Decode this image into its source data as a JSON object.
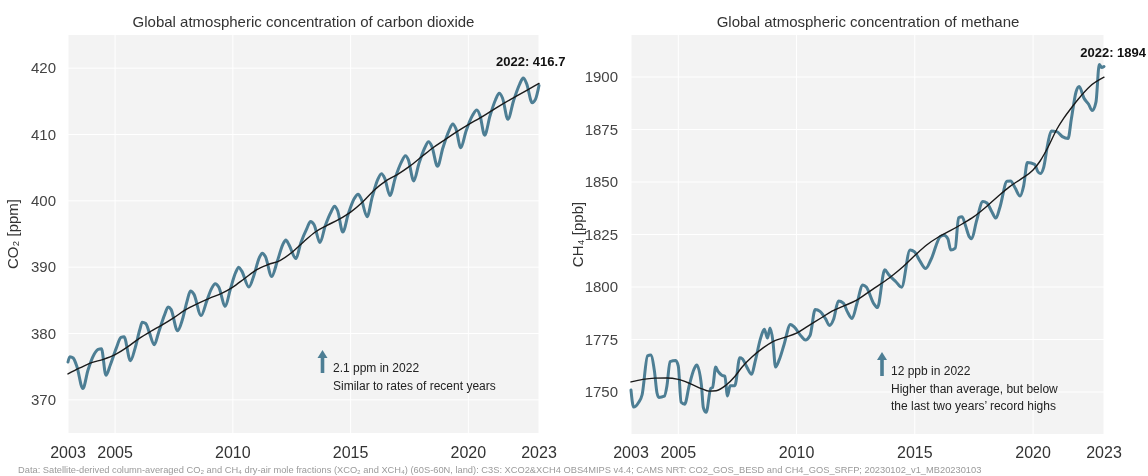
{
  "chart_data": [
    {
      "type": "line",
      "title": "Global atmospheric concentration of carbon dioxide",
      "ylabel": "CO₂ [ppm]",
      "xlim": [
        2003,
        2023
      ],
      "xticks": [
        2003,
        2005,
        2010,
        2015,
        2020,
        2023
      ],
      "ylim": [
        365,
        425
      ],
      "yticks": [
        370,
        380,
        390,
        400,
        410,
        420
      ],
      "grid": true,
      "annotations": [
        "2022: 416.7",
        "2.1 ppm in 2022",
        "Similar to rates of recent years",
        "Data: Satellite-derived column-averaged CO₂ and CH₄ dry-air mole fractions (XCO₂ and XCH₄) (60S-60N, land): C3S: XCO2&XCH4 OBS4MIPS v4.4; CAMS NRT: CO2_GOS_BESD and CH4_GOS_SRFP; 20230102_v1_MB20230103"
      ],
      "series": [
        {
          "color": "#4d7e94",
          "x": [
            2003.0,
            2003.08,
            2003.22,
            2003.38,
            2003.63,
            2003.85,
            2004.1,
            2004.28,
            2004.42,
            2004.61,
            2004.8,
            2005.05,
            2005.25,
            2005.38,
            2005.65,
            2005.85,
            2006.05,
            2006.15,
            2006.3,
            2006.45,
            2006.66,
            2006.85,
            2007.1,
            2007.25,
            2007.38,
            2007.65,
            2007.85,
            2008.05,
            2008.2,
            2008.35,
            2008.65,
            2008.9,
            2009.1,
            2009.25,
            2009.4,
            2009.68,
            2009.88,
            2010.12,
            2010.25,
            2010.38,
            2010.68,
            2010.88,
            2011.12,
            2011.25,
            2011.38,
            2011.65,
            2011.88,
            2012.12,
            2012.25,
            2012.38,
            2012.68,
            2012.88,
            2013.15,
            2013.3,
            2013.45,
            2013.7,
            2013.92,
            2014.18,
            2014.32,
            2014.45,
            2014.67,
            2014.9,
            2015.15,
            2015.32,
            2015.45,
            2015.7,
            2015.92,
            2016.15,
            2016.31,
            2016.45,
            2016.67,
            2016.9,
            2017.15,
            2017.33,
            2017.45,
            2017.68,
            2017.9,
            2018.15,
            2018.31,
            2018.45,
            2018.69,
            2018.92,
            2019.18,
            2019.34,
            2019.47,
            2019.68,
            2019.9,
            2020.18,
            2020.36,
            2020.5,
            2020.69,
            2020.92,
            2021.15,
            2021.31,
            2021.45,
            2021.68,
            2021.92,
            2022.18,
            2022.33,
            2022.47,
            2022.71,
            2022.85,
            2023.0
          ],
          "values": [
            375.7,
            376.5,
            376.3,
            375.0,
            371.7,
            374.5,
            376.8,
            377.6,
            377.7,
            373.7,
            375.3,
            377.8,
            379.4,
            379.5,
            375.9,
            377.8,
            380.6,
            381.7,
            381.5,
            380.2,
            378.3,
            380.2,
            382.8,
            384.0,
            383.6,
            380.4,
            382.0,
            384.8,
            386.4,
            385.9,
            382.7,
            385.0,
            386.8,
            387.5,
            387.0,
            384.1,
            386.5,
            389.2,
            390.0,
            389.4,
            387.0,
            388.6,
            391.4,
            392.1,
            391.6,
            388.6,
            390.8,
            393.4,
            394.1,
            393.4,
            391.3,
            393.6,
            395.9,
            396.9,
            396.4,
            393.7,
            396.2,
            398.4,
            399.2,
            398.5,
            395.3,
            398.0,
            400.3,
            401.0,
            400.3,
            397.6,
            400.6,
            403.2,
            404.1,
            403.4,
            400.8,
            403.5,
            405.8,
            406.8,
            406.2,
            403.0,
            405.6,
            408.0,
            408.9,
            408.2,
            405.2,
            408.0,
            410.6,
            411.6,
            410.9,
            408.0,
            410.5,
            412.9,
            413.7,
            412.8,
            409.9,
            412.8,
            415.2,
            416.2,
            415.5,
            412.3,
            415.1,
            417.6,
            418.5,
            417.7,
            414.8,
            415.3,
            417.4
          ]
        },
        {
          "color": "#1a1a1a",
          "x": [
            2003.0,
            2003.5,
            2004.0,
            2004.5,
            2005.0,
            2005.5,
            2006.0,
            2006.5,
            2007.0,
            2007.5,
            2008.0,
            2008.5,
            2009.0,
            2009.5,
            2010.0,
            2010.5,
            2011.0,
            2011.5,
            2012.0,
            2012.5,
            2013.0,
            2013.5,
            2014.0,
            2014.5,
            2015.0,
            2015.5,
            2016.0,
            2016.5,
            2017.0,
            2017.5,
            2018.0,
            2018.5,
            2019.0,
            2019.5,
            2020.0,
            2020.5,
            2021.0,
            2021.5,
            2022.0,
            2022.5,
            2023.0
          ],
          "values": [
            373.9,
            374.8,
            375.6,
            376.1,
            376.8,
            377.9,
            379.2,
            380.3,
            381.3,
            382.4,
            383.6,
            384.5,
            385.3,
            386.0,
            387.0,
            388.3,
            389.6,
            390.4,
            391.0,
            392.2,
            393.8,
            395.3,
            396.3,
            397.2,
            398.3,
            399.8,
            401.6,
            403.0,
            404.0,
            405.2,
            406.6,
            408.0,
            409.2,
            410.4,
            411.5,
            412.5,
            413.6,
            414.7,
            415.7,
            416.7,
            417.7
          ]
        }
      ]
    },
    {
      "type": "line",
      "title": "Global atmospheric concentration of methane",
      "ylabel": "CH₄ [ppb]",
      "xlim": [
        2003,
        2023
      ],
      "xticks": [
        2003,
        2005,
        2010,
        2015,
        2020,
        2023
      ],
      "ylim": [
        1730,
        1920
      ],
      "yticks": [
        1750,
        1775,
        1800,
        1825,
        1850,
        1875,
        1900
      ],
      "grid": true,
      "annotations": [
        "2022: 1894",
        "12 ppb in 2022",
        "Higher than average, but below",
        "the last two years’ record highs"
      ],
      "series": [
        {
          "color": "#4d7e94",
          "x": [
            2003.0,
            2003.11,
            2003.32,
            2003.47,
            2003.7,
            2003.83,
            2003.99,
            2004.1,
            2004.18,
            2004.41,
            2004.52,
            2004.65,
            2004.89,
            2005.0,
            2005.12,
            2005.27,
            2005.46,
            2005.67,
            2005.78,
            2005.98,
            2006.06,
            2006.18,
            2006.37,
            2006.45,
            2006.58,
            2006.68,
            2006.84,
            2006.97,
            2007.08,
            2007.19,
            2007.39,
            2007.6,
            2007.71,
            2007.91,
            2008.1,
            2008.25,
            2008.49,
            2008.64,
            2008.77,
            2008.88,
            2009.0,
            2009.11,
            2009.27,
            2009.47,
            2009.74,
            2009.9,
            2010.21,
            2010.37,
            2010.57,
            2010.79,
            2010.99,
            2011.23,
            2011.39,
            2011.57,
            2011.77,
            2011.98,
            2012.14,
            2012.35,
            2012.55,
            2012.8,
            2012.95,
            2013.27,
            2013.42,
            2013.73,
            2013.89,
            2014.2,
            2014.44,
            2014.8,
            2014.99,
            2015.22,
            2015.46,
            2015.69,
            2016.08,
            2016.24,
            2016.4,
            2016.52,
            2016.71,
            2016.85,
            2017.0,
            2017.15,
            2017.3,
            2017.41,
            2017.6,
            2017.88,
            2018.05,
            2018.25,
            2018.43,
            2018.6,
            2018.9,
            2019.05,
            2019.25,
            2019.45,
            2019.6,
            2019.76,
            2020.07,
            2020.2,
            2020.3,
            2020.45,
            2020.62,
            2020.77,
            2021.0,
            2021.24,
            2021.48,
            2021.62,
            2021.82,
            2021.95,
            2022.15,
            2022.35,
            2022.5,
            2022.66,
            2022.8,
            2022.9,
            2023.0
          ],
          "values": [
            1750.9,
            1742.8,
            1745.0,
            1748.7,
            1767.2,
            1767.6,
            1760.0,
            1749.5,
            1747.4,
            1748.0,
            1753.0,
            1764.5,
            1765.0,
            1762.3,
            1745.1,
            1744.2,
            1753.0,
            1761.0,
            1762.8,
            1753.0,
            1742.5,
            1740.3,
            1751.7,
            1752.2,
            1761.9,
            1759.8,
            1758.0,
            1757.5,
            1748.1,
            1753.0,
            1753.0,
            1766.3,
            1765.8,
            1761.6,
            1758.4,
            1764.6,
            1776.0,
            1779.9,
            1775.7,
            1780.5,
            1774.3,
            1761.9,
            1765.4,
            1772.5,
            1782.2,
            1781.0,
            1776.4,
            1774.8,
            1776.9,
            1789.3,
            1788.4,
            1784.8,
            1781.7,
            1784.8,
            1793.3,
            1792.3,
            1788.4,
            1785.0,
            1792.0,
            1801.0,
            1800.0,
            1792.0,
            1790.2,
            1808.2,
            1806.0,
            1802.5,
            1799.9,
            1817.6,
            1816.7,
            1812.3,
            1808.8,
            1813.2,
            1824.1,
            1824.7,
            1822.9,
            1817.6,
            1818.5,
            1833.0,
            1833.5,
            1829.0,
            1824.0,
            1823.0,
            1831.0,
            1840.7,
            1840.0,
            1836.0,
            1832.8,
            1838.0,
            1850.4,
            1850.5,
            1847.0,
            1843.3,
            1848.0,
            1859.3,
            1858.4,
            1855.0,
            1854.0,
            1857.0,
            1868.0,
            1874.3,
            1874.0,
            1871.6,
            1870.7,
            1880.0,
            1893.0,
            1895.5,
            1890.0,
            1887.0,
            1884.0,
            1888.0,
            1906.0,
            1904.5,
            1905.0
          ]
        },
        {
          "color": "#1a1a1a",
          "x": [
            2003.0,
            2003.5,
            2004.0,
            2004.5,
            2005.0,
            2005.5,
            2006.0,
            2006.3,
            2006.6,
            2007.0,
            2007.4,
            2007.7,
            2008.1,
            2008.6,
            2009.0,
            2009.5,
            2010.0,
            2010.5,
            2011.0,
            2011.5,
            2012.0,
            2012.5,
            2013.0,
            2013.5,
            2014.0,
            2014.5,
            2015.0,
            2015.5,
            2016.0,
            2016.5,
            2017.0,
            2017.5,
            2018.0,
            2018.5,
            2019.0,
            2019.5,
            2020.0,
            2020.3,
            2020.62,
            2021.0,
            2021.3,
            2021.6,
            2021.9,
            2022.4,
            2023.0
          ],
          "values": [
            1754.8,
            1756.0,
            1756.6,
            1756.7,
            1756.0,
            1754.0,
            1751.5,
            1750.4,
            1750.6,
            1753.1,
            1757.5,
            1761.9,
            1766.5,
            1771.1,
            1774.0,
            1776.0,
            1778.0,
            1781.5,
            1785.0,
            1788.5,
            1791.0,
            1793.5,
            1797.2,
            1801.0,
            1805.0,
            1809.6,
            1815.0,
            1820.0,
            1823.8,
            1826.8,
            1830.0,
            1833.5,
            1838.0,
            1843.0,
            1847.7,
            1851.5,
            1855.7,
            1860.0,
            1866.3,
            1875.0,
            1880.4,
            1885.0,
            1889.3,
            1895.5,
            1899.9
          ]
        }
      ]
    }
  ]
}
